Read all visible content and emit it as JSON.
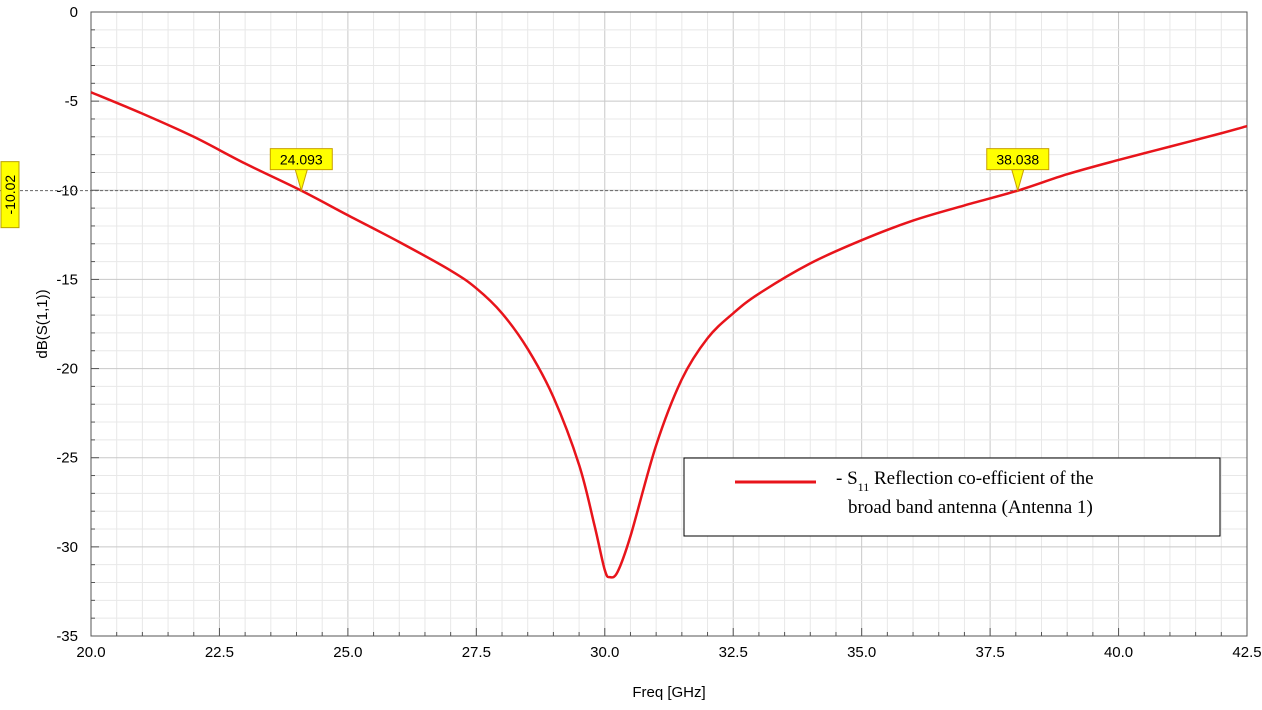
{
  "chart_data": {
    "type": "line",
    "title": "",
    "xlabel": "Freq [GHz]",
    "ylabel": "dB(S(1,1))",
    "xlim": [
      20.0,
      42.5
    ],
    "ylim": [
      -35,
      0
    ],
    "xticks": [
      "20.0",
      "22.5",
      "25.0",
      "27.5",
      "30.0",
      "32.5",
      "35.0",
      "37.5",
      "40.0",
      "42.5"
    ],
    "yticks": [
      "0",
      "-5",
      "-10",
      "-15",
      "-20",
      "-25",
      "-30",
      "-35"
    ],
    "grid": true,
    "legend_position": "bottom-right",
    "reference_line": {
      "value": -10.02,
      "label": "-10.02"
    },
    "markers": [
      {
        "label": "24.093",
        "x": 24.093,
        "y": -10.02
      },
      {
        "label": "38.038",
        "x": 38.038,
        "y": -10.02
      }
    ],
    "legend": {
      "prefix": "- S",
      "subscript": "11",
      "line1_rest": " Reflection co-efficient of the",
      "line2": "broad band antenna (Antenna 1)"
    },
    "series": [
      {
        "color": "#e8141b",
        "x": [
          20.0,
          21.0,
          22.0,
          23.0,
          24.093,
          25.0,
          26.0,
          27.0,
          27.5,
          28.0,
          28.5,
          29.0,
          29.5,
          29.8,
          30.0,
          30.1,
          30.25,
          30.5,
          31.0,
          31.5,
          32.0,
          32.5,
          33.0,
          34.0,
          35.0,
          36.0,
          37.0,
          38.038,
          39.0,
          40.0,
          41.0,
          42.0,
          42.5
        ],
        "y": [
          -4.5,
          -5.7,
          -7.0,
          -8.5,
          -10.02,
          -11.4,
          -12.9,
          -14.5,
          -15.5,
          -16.9,
          -18.9,
          -21.6,
          -25.4,
          -28.8,
          -31.3,
          -31.7,
          -31.4,
          -29.4,
          -24.3,
          -20.6,
          -18.3,
          -16.9,
          -15.8,
          -14.1,
          -12.8,
          -11.7,
          -10.85,
          -10.02,
          -9.1,
          -8.3,
          -7.55,
          -6.8,
          -6.4
        ]
      }
    ]
  }
}
